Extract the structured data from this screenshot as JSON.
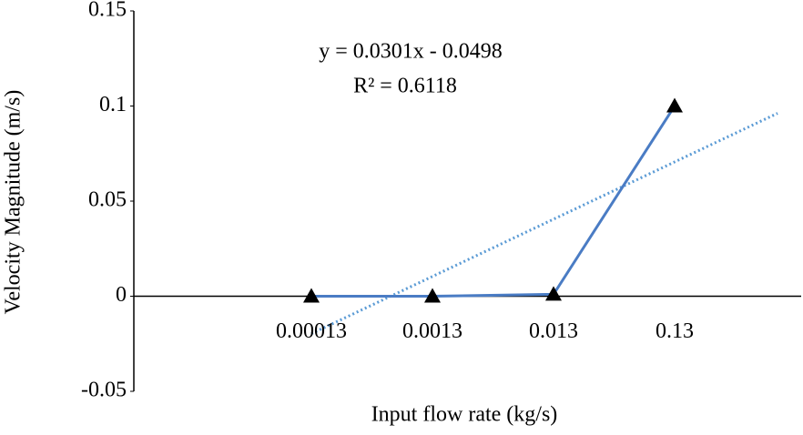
{
  "chart_data": {
    "type": "line",
    "x_label": "Input flow rate (kg/s)",
    "y_label": "Velocity Magnitude (m/s)",
    "categories": [
      "0.00013",
      "0.0013",
      "0.013",
      "0.13"
    ],
    "series": [
      {
        "color": "#4a7cc4",
        "values": [
          0,
          0,
          0.001,
          0.1
        ]
      }
    ],
    "ylim": [
      -0.05,
      0.15
    ],
    "yticks": [
      -0.05,
      0,
      0.05,
      0.1,
      0.15
    ],
    "trendline": {
      "slope": 0.0301,
      "intercept": -0.0498,
      "color": "#5b9bd5",
      "equation": "y = 0.0301x - 0.0498",
      "r_squared": "R² = 0.6118"
    }
  }
}
